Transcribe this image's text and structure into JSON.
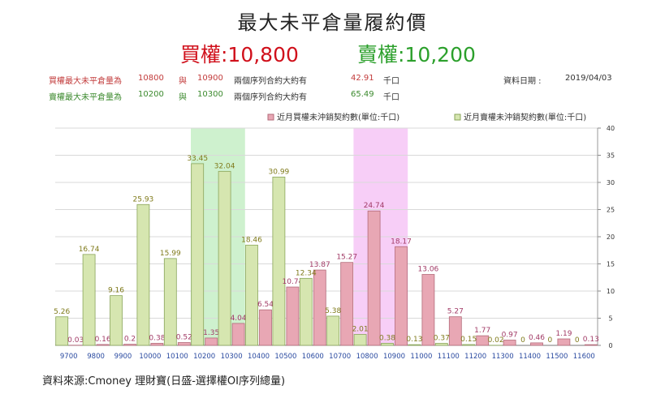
{
  "title": "最大未平倉量履約價",
  "subtitle": {
    "call": "買權:10,800",
    "put": "賣權:10,200"
  },
  "info": {
    "row1": {
      "label": "買權最大未平倉量為",
      "a": "10800",
      "conj": "與",
      "b": "10900",
      "desc": "兩個序列合約大約有",
      "value": "42.91",
      "unit": "千口",
      "date_label": "資料日期 :",
      "date": "2019/04/03"
    },
    "row2": {
      "label": "賣權最大未平倉量為",
      "a": "10200",
      "conj": "與",
      "b": "10300",
      "desc": "兩個序列合約大約有",
      "value": "65.49",
      "unit": "千口"
    }
  },
  "chart_data": {
    "type": "bar",
    "categories": [
      "9700",
      "9800",
      "9900",
      "10000",
      "10100",
      "10200",
      "10300",
      "10400",
      "10500",
      "10600",
      "10700",
      "10800",
      "10900",
      "11000",
      "11100",
      "11200",
      "11300",
      "11400",
      "11500",
      "11600"
    ],
    "series": [
      {
        "name": "近月買權未沖銷契約數(單位:千口)",
        "color": "#e8a7b4",
        "label_color": "#a13a66",
        "values": [
          0.03,
          0.16,
          0.2,
          0.38,
          0.52,
          1.35,
          4.04,
          6.54,
          10.74,
          13.87,
          15.27,
          24.74,
          18.17,
          13.06,
          5.27,
          1.77,
          0.97,
          0.46,
          1.19,
          0.13
        ]
      },
      {
        "name": "近月賣權未沖銷契約數(單位:千口)",
        "color": "#d6e6b0",
        "label_color": "#7f7a1a",
        "values": [
          5.26,
          16.74,
          9.16,
          25.93,
          15.99,
          33.45,
          32.04,
          18.46,
          30.99,
          12.34,
          5.38,
          2.01,
          0.38,
          0.13,
          0.37,
          0.15,
          0.02,
          0,
          0,
          0
        ]
      }
    ],
    "highlights": [
      {
        "from": "10200",
        "to": "10300",
        "color": "#c6efc6"
      },
      {
        "from": "10800",
        "to": "10900",
        "color": "#f6c6f6"
      }
    ],
    "y_ticks": [
      0,
      5,
      10,
      15,
      20,
      25,
      30,
      35,
      40
    ],
    "ylim": [
      0,
      40
    ],
    "grid": true,
    "legend": "top"
  },
  "footer": "資料來源:Cmoney 理財寶(日盛-選擇權OI序列總量)"
}
